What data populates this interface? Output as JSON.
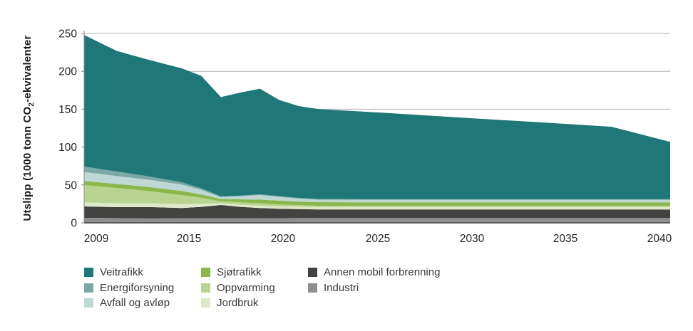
{
  "chart_data": {
    "type": "area",
    "stacked": true,
    "ylabel_prefix": "Utslipp (1000 tonn CO",
    "ylabel_sub": "2",
    "ylabel_suffix": "-ekvivalenter",
    "x": [
      2009,
      2011,
      2013,
      2015,
      2016,
      2017,
      2018,
      2019,
      2020,
      2021,
      2022,
      2025,
      2030,
      2035,
      2037,
      2040
    ],
    "x_tick_labels": [
      "2009",
      "2015",
      "2020",
      "2025",
      "2030",
      "2035",
      "2040"
    ],
    "y_ticks": [
      0,
      50,
      100,
      150,
      200,
      250
    ],
    "ylim": [
      0,
      250
    ],
    "grid": "horizontal",
    "legend_position": "bottom",
    "series": [
      {
        "id": "industri",
        "name": "Industri",
        "color": "#8d8f8e",
        "values": [
          6.6,
          6.2,
          5.8,
          6.0,
          6.0,
          6.0,
          6.0,
          6.0,
          6.0,
          6.3,
          6.3,
          6.3,
          6.3,
          6.3,
          6.3,
          6.3
        ]
      },
      {
        "id": "annen-mobil-forbrenning",
        "name": "Annen mobil forbrenning",
        "color": "#424240",
        "values": [
          15.0,
          14.5,
          15.0,
          13.5,
          15.0,
          17.5,
          15.0,
          13.5,
          12.5,
          11.8,
          11.3,
          11.3,
          11.3,
          11.3,
          11.3,
          11.3
        ]
      },
      {
        "id": "jordbruk",
        "name": "Jordbruk",
        "color": "#dde9c9",
        "values": [
          5.4,
          5.2,
          5.0,
          5.0,
          4.0,
          2.5,
          3.0,
          3.2,
          3.2,
          3.2,
          3.2,
          3.2,
          3.2,
          3.2,
          3.2,
          3.2
        ]
      },
      {
        "id": "oppvarming",
        "name": "Oppvarming",
        "color": "#b9d48e",
        "values": [
          22.8,
          20.0,
          16.0,
          12.0,
          8.0,
          2.5,
          3.0,
          3.0,
          2.5,
          2.0,
          1.8,
          1.5,
          1.5,
          1.5,
          1.5,
          1.5
        ]
      },
      {
        "id": "sjotrafikk",
        "name": "Sjøtrafikk",
        "color": "#8ab84d",
        "values": [
          5.4,
          5.4,
          5.4,
          5.5,
          4.5,
          3.0,
          4.0,
          5.0,
          5.0,
          4.7,
          4.7,
          4.7,
          4.7,
          4.7,
          4.7,
          4.7
        ]
      },
      {
        "id": "avfall-og-avlop",
        "name": "Avfall og avløp",
        "color": "#bfd7d5",
        "values": [
          11.8,
          10.5,
          9.5,
          8.5,
          6.0,
          2.5,
          4.0,
          6.0,
          5.0,
          4.0,
          3.3,
          3.3,
          3.3,
          3.3,
          3.3,
          3.3
        ]
      },
      {
        "id": "energiforsyning",
        "name": "Energiforsyning",
        "color": "#7aa8a5",
        "values": [
          7.2,
          6.0,
          4.5,
          3.0,
          2.0,
          1.0,
          1.0,
          1.0,
          1.0,
          0.8,
          0.8,
          0.8,
          0.8,
          0.8,
          0.8,
          0.8
        ]
      },
      {
        "id": "veitrafikk",
        "name": "Veitrafikk",
        "color": "#1f7877",
        "values": [
          173.8,
          159.2,
          153.8,
          150.5,
          148.5,
          131.0,
          136.0,
          139.3,
          126.8,
          121.2,
          118.7,
          114.7,
          106.7,
          99.0,
          95.7,
          75.7
        ]
      }
    ],
    "legend_columns": [
      [
        "Veitrafikk",
        "Energiforsyning",
        "Avfall og avløp"
      ],
      [
        "Sjøtrafikk",
        "Oppvarming",
        "Jordbruk"
      ],
      [
        "Annen mobil forbrenning",
        "Industri"
      ]
    ],
    "colors": {
      "gridline": "#b0b0b0",
      "axis_line": "#595959",
      "y_axis_line": "#8a8a8a",
      "tick_text": "#262626"
    }
  }
}
